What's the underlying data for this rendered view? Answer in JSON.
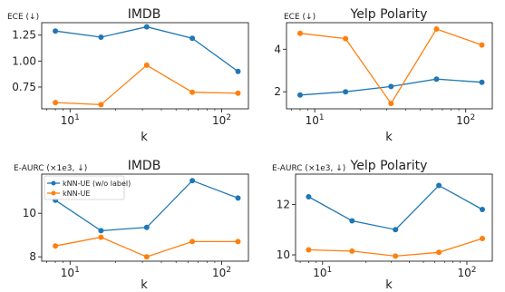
{
  "chart_data": [
    {
      "type": "line",
      "title": "IMDB",
      "xlabel": "k",
      "ylabel": "ECE (↓)",
      "xscale": "log",
      "x": [
        8,
        16,
        32,
        64,
        128
      ],
      "xlim": [
        6.5,
        150
      ],
      "ylim": [
        0.54,
        1.37
      ],
      "xticks": [
        {
          "value": 10,
          "base": "10",
          "exp": "1"
        },
        {
          "value": 100,
          "base": "10",
          "exp": "2"
        }
      ],
      "yticks": [
        {
          "value": 0.75,
          "label": "0.75"
        },
        {
          "value": 1.0,
          "label": "1.00"
        },
        {
          "value": 1.25,
          "label": "1.25"
        }
      ],
      "series": [
        {
          "name": "kNN-UE (w/o label)",
          "color": "#1f77b4",
          "values": [
            1.29,
            1.23,
            1.33,
            1.22,
            0.9
          ]
        },
        {
          "name": "kNN-UE",
          "color": "#ff7f0e",
          "values": [
            0.6,
            0.58,
            0.96,
            0.7,
            0.69
          ]
        }
      ],
      "legend": null
    },
    {
      "type": "line",
      "title": "Yelp Polarity",
      "xlabel": "k",
      "ylabel": "ECE (↓)",
      "xscale": "log",
      "x": [
        8,
        16,
        32,
        64,
        128
      ],
      "xlim": [
        6.5,
        150
      ],
      "ylim": [
        1.2,
        5.25
      ],
      "xticks": [
        {
          "value": 10,
          "base": "10",
          "exp": "1"
        },
        {
          "value": 100,
          "base": "10",
          "exp": "2"
        }
      ],
      "yticks": [
        {
          "value": 2,
          "label": "2"
        },
        {
          "value": 4,
          "label": "4"
        }
      ],
      "series": [
        {
          "name": "kNN-UE (w/o label)",
          "color": "#1f77b4",
          "values": [
            1.85,
            2.0,
            2.25,
            2.6,
            2.45
          ]
        },
        {
          "name": "kNN-UE",
          "color": "#ff7f0e",
          "values": [
            4.75,
            4.5,
            1.45,
            4.95,
            4.2
          ]
        }
      ],
      "legend": null
    },
    {
      "type": "line",
      "title": "IMDB",
      "xlabel": "k",
      "ylabel": "E-AURC (×1e3, ↓)",
      "xscale": "log",
      "x": [
        8,
        16,
        32,
        64,
        128
      ],
      "xlim": [
        6.5,
        150
      ],
      "ylim": [
        7.8,
        11.8
      ],
      "xticks": [
        {
          "value": 10,
          "base": "10",
          "exp": "1"
        },
        {
          "value": 100,
          "base": "10",
          "exp": "2"
        }
      ],
      "yticks": [
        {
          "value": 8,
          "label": "8"
        },
        {
          "value": 10,
          "label": "10"
        }
      ],
      "series": [
        {
          "name": "kNN-UE (w/o label)",
          "color": "#1f77b4",
          "values": [
            10.6,
            9.2,
            9.35,
            11.5,
            10.7
          ]
        },
        {
          "name": "kNN-UE",
          "color": "#ff7f0e",
          "values": [
            8.5,
            8.9,
            8.0,
            8.7,
            8.7
          ]
        }
      ],
      "legend": "top-left"
    },
    {
      "type": "line",
      "title": "Yelp Polarity",
      "xlabel": "k",
      "ylabel": "E-AURC (×1e3, ↓)",
      "xscale": "log",
      "x": [
        8,
        16,
        32,
        64,
        128
      ],
      "xlim": [
        6.5,
        150
      ],
      "ylim": [
        9.75,
        13.2
      ],
      "xticks": [
        {
          "value": 10,
          "base": "10",
          "exp": "1"
        },
        {
          "value": 100,
          "base": "10",
          "exp": "2"
        }
      ],
      "yticks": [
        {
          "value": 10,
          "label": "10"
        },
        {
          "value": 12,
          "label": "12"
        }
      ],
      "series": [
        {
          "name": "kNN-UE (w/o label)",
          "color": "#1f77b4",
          "values": [
            12.3,
            11.35,
            11.0,
            12.75,
            11.8
          ]
        },
        {
          "name": "kNN-UE",
          "color": "#ff7f0e",
          "values": [
            10.2,
            10.15,
            9.95,
            10.1,
            10.65
          ]
        }
      ],
      "legend": null
    }
  ]
}
